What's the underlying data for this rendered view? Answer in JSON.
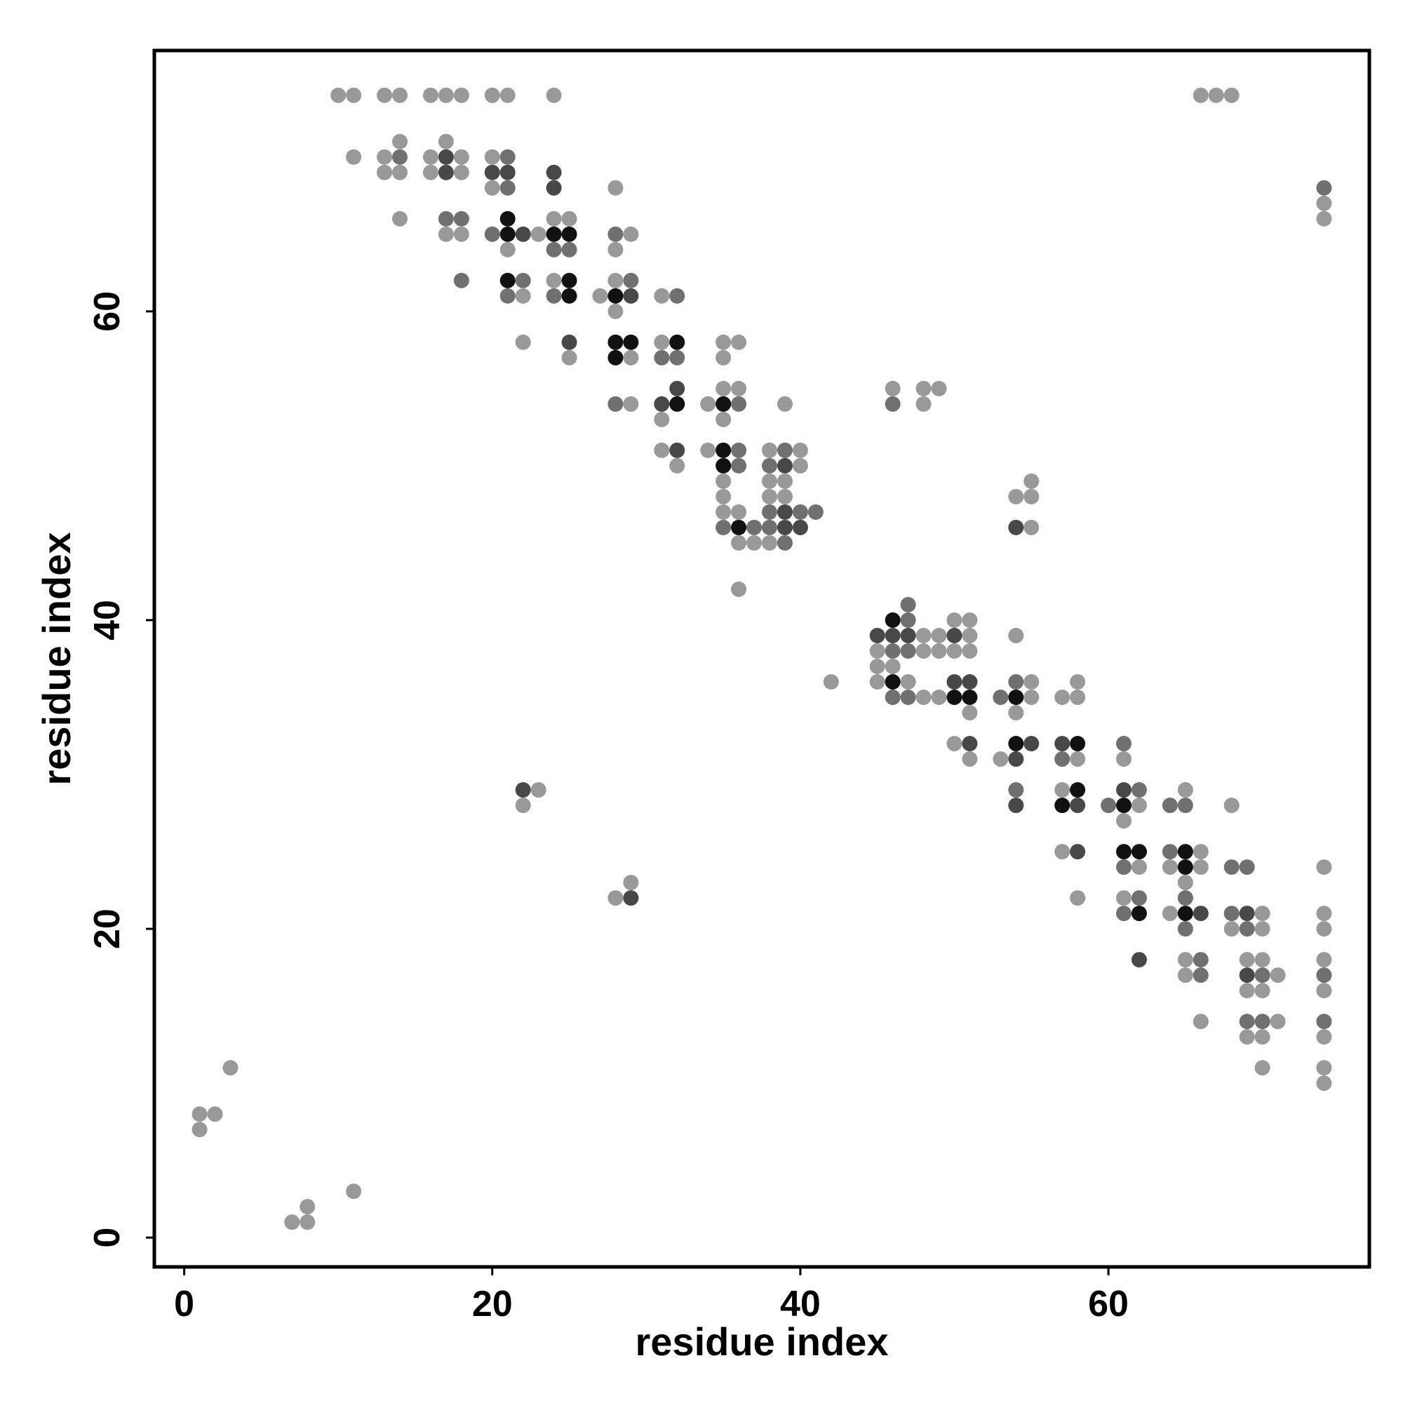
{
  "chart_data": {
    "type": "scatter",
    "xlabel": "residue index",
    "ylabel": "residue index",
    "xlim": [
      -1.94,
      76.94
    ],
    "ylim": [
      -1.9,
      76.9
    ],
    "xticks": [
      0,
      20,
      40,
      60
    ],
    "yticks": [
      0,
      20,
      40,
      60
    ],
    "grid": false,
    "series": [
      {
        "color": "#999999",
        "x": [
          10,
          11,
          13,
          14,
          16,
          17,
          18,
          20,
          21,
          24,
          66,
          67,
          68,
          14,
          17,
          11,
          13,
          16,
          18,
          20,
          13,
          14,
          16,
          18,
          20,
          28,
          74,
          14,
          24,
          25,
          74,
          17,
          18,
          23,
          29,
          21,
          28,
          24,
          28,
          22,
          27,
          31,
          28,
          22,
          31,
          35,
          36,
          25,
          29,
          35,
          35,
          36,
          46,
          48,
          49,
          29,
          34,
          39,
          48,
          31,
          35,
          31,
          34,
          38,
          40,
          32,
          40,
          35,
          38,
          39,
          55,
          35,
          38,
          39,
          54,
          55,
          35,
          36,
          55,
          36,
          37,
          38,
          36,
          50,
          51,
          48,
          49,
          51,
          54,
          45,
          48,
          49,
          50,
          51,
          45,
          46,
          42,
          45,
          47,
          55,
          58,
          48,
          49,
          55,
          57,
          58,
          51,
          54,
          50,
          51,
          53,
          58,
          61,
          23,
          57,
          65,
          22,
          62,
          68,
          61,
          57,
          66,
          62,
          64,
          66,
          74,
          29,
          65,
          28,
          58,
          61,
          64,
          70,
          74,
          68,
          70,
          74,
          65,
          69,
          70,
          74,
          65,
          71,
          69,
          70,
          74,
          66,
          71,
          69,
          70,
          74,
          3,
          70,
          74,
          74,
          1,
          2,
          1,
          11,
          8,
          7,
          8
        ],
        "y": [
          74,
          74,
          74,
          74,
          74,
          74,
          74,
          74,
          74,
          74,
          74,
          74,
          74,
          71,
          71,
          70,
          70,
          70,
          70,
          70,
          69,
          69,
          69,
          69,
          68,
          68,
          67,
          66,
          66,
          66,
          66,
          65,
          65,
          65,
          65,
          64,
          64,
          62,
          62,
          61,
          61,
          61,
          60,
          58,
          58,
          58,
          58,
          57,
          57,
          57,
          55,
          55,
          55,
          55,
          55,
          54,
          54,
          54,
          54,
          53,
          53,
          51,
          51,
          51,
          51,
          50,
          50,
          49,
          49,
          49,
          49,
          48,
          48,
          48,
          48,
          48,
          47,
          47,
          46,
          45,
          45,
          45,
          42,
          40,
          40,
          39,
          39,
          39,
          39,
          38,
          38,
          38,
          38,
          38,
          37,
          37,
          36,
          36,
          36,
          36,
          36,
          35,
          35,
          35,
          35,
          35,
          34,
          34,
          32,
          31,
          31,
          31,
          31,
          29,
          29,
          29,
          28,
          28,
          28,
          27,
          25,
          25,
          24,
          24,
          24,
          24,
          23,
          23,
          22,
          22,
          22,
          21,
          21,
          21,
          20,
          20,
          20,
          18,
          18,
          18,
          18,
          17,
          17,
          16,
          16,
          16,
          14,
          14,
          13,
          13,
          13,
          11,
          11,
          11,
          10,
          8,
          8,
          7,
          3,
          2,
          1,
          1
        ]
      },
      {
        "color": "#707070",
        "x": [
          14,
          21,
          21,
          17,
          18,
          20,
          28,
          24,
          25,
          18,
          22,
          29,
          21,
          24,
          32,
          31,
          32,
          28,
          36,
          46,
          36,
          39,
          36,
          38,
          38,
          40,
          41,
          35,
          37,
          38,
          39,
          47,
          47,
          46,
          47,
          54,
          46,
          47,
          53,
          61,
          57,
          54,
          62,
          60,
          64,
          65,
          64,
          61,
          68,
          69,
          62,
          65,
          61,
          68,
          65,
          69,
          66,
          66,
          70,
          74,
          69,
          70,
          74,
          74
        ],
        "y": [
          70,
          70,
          68,
          66,
          66,
          65,
          65,
          64,
          64,
          62,
          62,
          62,
          61,
          61,
          61,
          57,
          57,
          54,
          54,
          54,
          51,
          51,
          50,
          50,
          47,
          47,
          47,
          46,
          46,
          46,
          45,
          41,
          40,
          38,
          38,
          36,
          35,
          35,
          35,
          32,
          31,
          29,
          29,
          28,
          28,
          28,
          25,
          24,
          24,
          24,
          22,
          22,
          21,
          21,
          20,
          20,
          18,
          17,
          17,
          17,
          14,
          14,
          14,
          68
        ]
      },
      {
        "color": "#484848",
        "x": [
          17,
          17,
          20,
          21,
          24,
          24,
          22,
          25,
          32,
          31,
          32,
          39,
          39,
          39,
          40,
          54,
          45,
          46,
          47,
          50,
          50,
          51,
          51,
          55,
          57,
          54,
          22,
          61,
          54,
          58,
          58,
          29,
          66,
          69,
          62,
          69,
          29
        ],
        "y": [
          70,
          69,
          69,
          69,
          69,
          68,
          65,
          58,
          55,
          54,
          51,
          50,
          47,
          46,
          46,
          46,
          39,
          39,
          39,
          39,
          36,
          36,
          32,
          32,
          32,
          31,
          29,
          29,
          28,
          28,
          25,
          22,
          21,
          21,
          18,
          17,
          61
        ]
      },
      {
        "color": "#111111",
        "x": [
          21,
          21,
          24,
          25,
          21,
          25,
          25,
          28,
          28,
          29,
          32,
          28,
          32,
          35,
          35,
          35,
          36,
          46,
          46,
          50,
          51,
          54,
          54,
          58,
          58,
          57,
          61,
          61,
          62,
          65,
          65,
          62,
          65
        ],
        "y": [
          66,
          65,
          65,
          65,
          62,
          62,
          61,
          61,
          58,
          58,
          58,
          57,
          54,
          54,
          51,
          50,
          46,
          40,
          36,
          35,
          35,
          35,
          32,
          32,
          29,
          28,
          28,
          25,
          25,
          25,
          24,
          21,
          21
        ]
      }
    ]
  }
}
